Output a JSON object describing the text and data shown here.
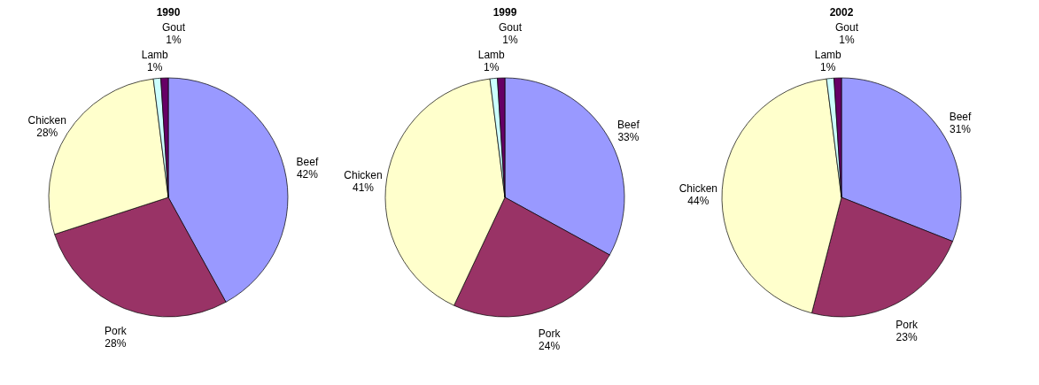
{
  "chart_data": [
    {
      "type": "pie",
      "title": "1990",
      "categories": [
        "Beef",
        "Pork",
        "Chicken",
        "Lamb",
        "Gout"
      ],
      "values": [
        42,
        28,
        28,
        1,
        1
      ],
      "value_labels": [
        "42%",
        "28%",
        "28%",
        "1%",
        "1%"
      ],
      "colors": [
        "#9999ff",
        "#993366",
        "#ffffcc",
        "#ccffff",
        "#660066"
      ]
    },
    {
      "type": "pie",
      "title": "1999",
      "categories": [
        "Beef",
        "Pork",
        "Chicken",
        "Lamb",
        "Gout"
      ],
      "values": [
        33,
        24,
        41,
        1,
        1
      ],
      "value_labels": [
        "33%",
        "24%",
        "41%",
        "1%",
        "1%"
      ],
      "colors": [
        "#9999ff",
        "#993366",
        "#ffffcc",
        "#ccffff",
        "#660066"
      ]
    },
    {
      "type": "pie",
      "title": "2002",
      "categories": [
        "Beef",
        "Pork",
        "Chicken",
        "Lamb",
        "Gout"
      ],
      "values": [
        31,
        23,
        44,
        1,
        1
      ],
      "value_labels": [
        "31%",
        "23%",
        "44%",
        "1%",
        "1%"
      ],
      "colors": [
        "#9999ff",
        "#993366",
        "#ffffcc",
        "#ccffff",
        "#660066"
      ]
    }
  ]
}
